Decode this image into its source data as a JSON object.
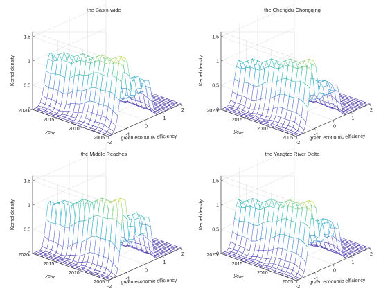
{
  "chart_data": [
    {
      "type": "surface",
      "title": "the Basin-wide",
      "xlabel": "green economic efficiency",
      "ylabel": "year",
      "zlabel": "Kernel density",
      "x_ticks": [
        "-2",
        "-1",
        "0",
        "1",
        "2"
      ],
      "y_ticks": [
        "2005",
        "2010",
        "2015",
        "2020"
      ],
      "z_ticks": [
        "0",
        "0.5",
        "1",
        "1.5"
      ],
      "x_range": [
        -2,
        2
      ],
      "y_range": [
        2005,
        2020
      ],
      "z_range": [
        0,
        1.6
      ],
      "peaks": [
        {
          "x": -1.05,
          "z_2005": 1.45,
          "z_2020": 1.0,
          "width": 0.34
        },
        {
          "x": -0.35,
          "z_2005": 0.95,
          "z_2020": 0.55,
          "width": 0.22
        },
        {
          "x": 0.2,
          "z_2005": 0.8,
          "z_2020": 0.45,
          "width": 0.22
        }
      ]
    },
    {
      "type": "surface",
      "title": "the Chengdu-Chongqing",
      "xlabel": "green economic efficiency",
      "ylabel": "year",
      "zlabel": "Kernel density",
      "x_ticks": [
        "-2",
        "-1",
        "0",
        "1",
        "2"
      ],
      "y_ticks": [
        "2005",
        "2010",
        "2015",
        "2020"
      ],
      "z_ticks": [
        "0",
        "0.5",
        "1",
        "1.5"
      ],
      "x_range": [
        -2,
        2
      ],
      "y_range": [
        2005,
        2020
      ],
      "z_range": [
        0,
        1.6
      ],
      "peaks": [
        {
          "x": -1.05,
          "z_2005": 1.4,
          "z_2020": 0.85,
          "width": 0.3
        },
        {
          "x": -0.4,
          "z_2005": 0.85,
          "z_2020": 0.6,
          "width": 0.2
        },
        {
          "x": 0.2,
          "z_2005": 0.7,
          "z_2020": 0.5,
          "width": 0.22
        }
      ]
    },
    {
      "type": "surface",
      "title": "the Middle Reaches",
      "xlabel": "green economic efficiency",
      "ylabel": "year",
      "zlabel": "Kernel density",
      "x_ticks": [
        "-2",
        "-1",
        "0",
        "1",
        "2"
      ],
      "y_ticks": [
        "2005",
        "2010",
        "2015",
        "2020"
      ],
      "z_ticks": [
        "0",
        "0.5",
        "1",
        "1.5"
      ],
      "x_range": [
        -2,
        2
      ],
      "y_range": [
        2005,
        2020
      ],
      "z_range": [
        0,
        1.6
      ],
      "peaks": [
        {
          "x": -1.1,
          "z_2005": 1.55,
          "z_2020": 0.95,
          "width": 0.24
        },
        {
          "x": -0.4,
          "z_2005": 1.1,
          "z_2020": 0.7,
          "width": 0.22
        },
        {
          "x": 0.2,
          "z_2005": 0.95,
          "z_2020": 0.55,
          "width": 0.22
        }
      ]
    },
    {
      "type": "surface",
      "title": "the Yangtze River Delta",
      "xlabel": "green economic efficiency",
      "ylabel": "year",
      "zlabel": "Kernel density",
      "x_ticks": [
        "-2",
        "-1",
        "0",
        "1",
        "2"
      ],
      "y_ticks": [
        "2005",
        "2010",
        "2015",
        "2020"
      ],
      "z_ticks": [
        "0",
        "0.5",
        "1",
        "1.5"
      ],
      "x_range": [
        -2,
        2
      ],
      "y_range": [
        2005,
        2020
      ],
      "z_range": [
        0,
        1.6
      ],
      "peaks": [
        {
          "x": -1.05,
          "z_2005": 1.45,
          "z_2020": 0.95,
          "width": 0.32
        },
        {
          "x": -0.35,
          "z_2005": 0.9,
          "z_2020": 0.6,
          "width": 0.22
        },
        {
          "x": 0.2,
          "z_2005": 0.85,
          "z_2020": 0.45,
          "width": 0.24
        }
      ]
    }
  ],
  "colormap": [
    "#4b3aa8",
    "#6a6fd0",
    "#2aa9c9",
    "#3fbfa0",
    "#f4e52a"
  ]
}
